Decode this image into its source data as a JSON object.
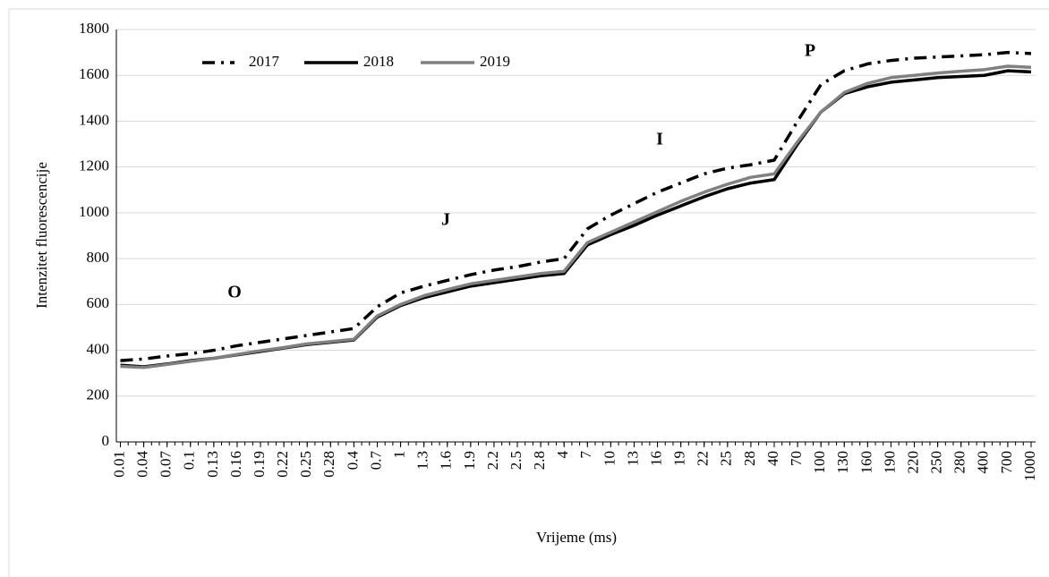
{
  "chart_data": {
    "type": "line",
    "x_label": "Vrijeme (ms)",
    "y_label": "Intenzitet fluorescencije",
    "categories": [
      "0.01",
      "0.04",
      "0.07",
      "0.1",
      "0.13",
      "0.16",
      "0.19",
      "0.22",
      "0.25",
      "0.28",
      "0.4",
      "0.7",
      "1",
      "1.3",
      "1.6",
      "1.9",
      "2.2",
      "2.5",
      "2.8",
      "4",
      "7",
      "10",
      "13",
      "16",
      "19",
      "22",
      "25",
      "28",
      "40",
      "70",
      "100",
      "130",
      "160",
      "190",
      "220",
      "250",
      "280",
      "400",
      "700",
      "1000"
    ],
    "series": [
      {
        "name": "2017",
        "color": "#000000",
        "line_style": "dashdot",
        "values": [
          355,
          362,
          375,
          385,
          400,
          420,
          435,
          450,
          465,
          480,
          495,
          590,
          650,
          680,
          705,
          730,
          750,
          765,
          785,
          800,
          930,
          990,
          1040,
          1090,
          1130,
          1170,
          1195,
          1210,
          1230,
          1400,
          1560,
          1620,
          1650,
          1665,
          1675,
          1680,
          1685,
          1690,
          1700,
          1695
        ]
      },
      {
        "name": "2018",
        "color": "#000000",
        "line_style": "solid",
        "values": [
          335,
          328,
          340,
          355,
          365,
          380,
          395,
          410,
          425,
          435,
          445,
          545,
          595,
          630,
          655,
          680,
          695,
          710,
          725,
          735,
          860,
          905,
          945,
          990,
          1030,
          1070,
          1105,
          1130,
          1145,
          1300,
          1440,
          1520,
          1550,
          1570,
          1580,
          1590,
          1595,
          1600,
          1620,
          1615
        ]
      },
      {
        "name": "2019",
        "color": "#808080",
        "line_style": "solid",
        "values": [
          330,
          325,
          338,
          352,
          365,
          382,
          398,
          412,
          428,
          438,
          448,
          550,
          600,
          638,
          665,
          690,
          705,
          720,
          735,
          745,
          870,
          915,
          960,
          1005,
          1050,
          1090,
          1125,
          1155,
          1170,
          1310,
          1440,
          1525,
          1565,
          1590,
          1600,
          1610,
          1618,
          1625,
          1640,
          1635
        ]
      }
    ],
    "annotations": [
      "O",
      "J",
      "I",
      "P"
    ],
    "ylim": [
      0,
      1800
    ],
    "yticks": [
      0,
      200,
      400,
      600,
      800,
      1000,
      1200,
      1400,
      1600,
      1800
    ],
    "grid": true,
    "legend": "top-left"
  }
}
